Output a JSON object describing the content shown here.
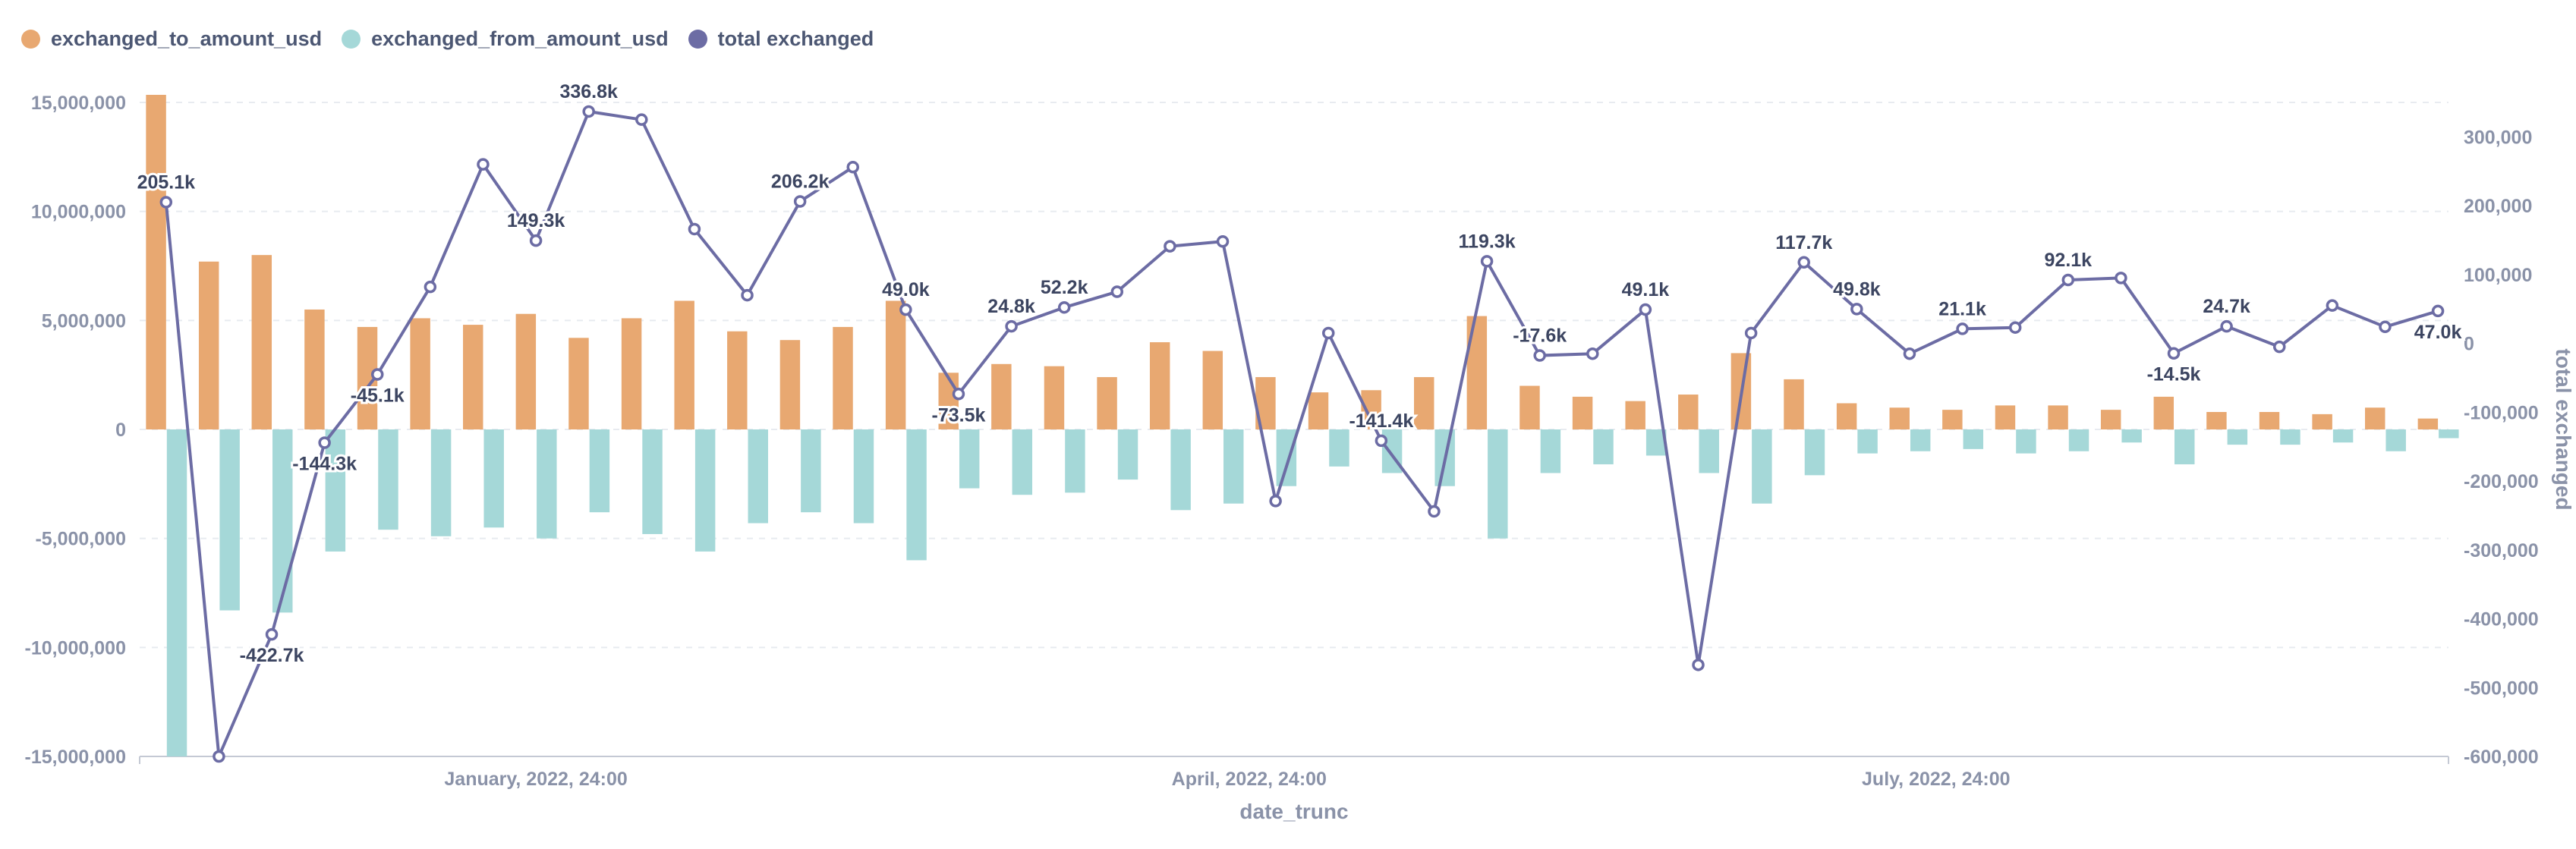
{
  "colors": {
    "to_amount": "#E8A871",
    "from_amount": "#A5D8D8",
    "total_line": "#6C6CA4",
    "axis_text": "#8A92A8",
    "label_text": "#3C4561",
    "grid": "#E8EBF0"
  },
  "legend": [
    {
      "label": "exchanged_to_amount_usd",
      "color": "#E8A871"
    },
    {
      "label": "exchanged_from_amount_usd",
      "color": "#A5D8D8"
    },
    {
      "label": "total exchanged",
      "color": "#6C6CA4"
    }
  ],
  "chart_data": {
    "type": "bar",
    "x_label": "date_trunc",
    "y2_label": "total exchanged",
    "left_axis": {
      "range": [
        -15000000,
        15000000
      ],
      "ticks": [
        15000000,
        10000000,
        5000000,
        0,
        -5000000,
        -10000000,
        -15000000
      ],
      "tick_labels": [
        "15,000,000",
        "10,000,000",
        "5,000,000",
        "0",
        "-5,000,000",
        "-10,000,000",
        "-15,000,000"
      ]
    },
    "right_axis": {
      "range": [
        -600000,
        350000
      ],
      "ticks": [
        300000,
        200000,
        100000,
        0,
        -100000,
        -200000,
        -300000,
        -400000,
        -500000,
        -600000
      ],
      "tick_labels": [
        "300,000",
        "200,000",
        "100,000",
        "0",
        "-100,000",
        "-200,000",
        "-300,000",
        "-400,000",
        "-500,000",
        "-600,000"
      ]
    },
    "x_ticks": [
      {
        "label": "January, 2022, 24:00",
        "index": 7
      },
      {
        "label": "April, 2022, 24:00",
        "index": 20.5
      },
      {
        "label": "July, 2022, 24:00",
        "index": 33.5
      }
    ],
    "grid": true,
    "legend_position": "top-left",
    "series": [
      {
        "name": "exchanged_to_amount_usd",
        "kind": "bar",
        "values": [
          15500000,
          7700000,
          8000000,
          5500000,
          4700000,
          5100000,
          4800000,
          5300000,
          4200000,
          5100000,
          5900000,
          4500000,
          4100000,
          4700000,
          5900000,
          2600000,
          3000000,
          2900000,
          2400000,
          4000000,
          3600000,
          2400000,
          1700000,
          1800000,
          2400000,
          5200000,
          2000000,
          1500000,
          1300000,
          1600000,
          3500000,
          2300000,
          1200000,
          1000000,
          900000,
          1100000,
          1100000,
          900000,
          1500000,
          800000,
          800000,
          700000,
          1000000,
          500000
        ]
      },
      {
        "name": "exchanged_from_amount_usd",
        "kind": "bar",
        "values": [
          -15300000,
          -8300000,
          -8400000,
          -5600000,
          -4600000,
          -4900000,
          -4500000,
          -5000000,
          -3800000,
          -4800000,
          -5600000,
          -4300000,
          -3800000,
          -4300000,
          -6000000,
          -2700000,
          -3000000,
          -2900000,
          -2300000,
          -3700000,
          -3400000,
          -2600000,
          -1700000,
          -2000000,
          -2600000,
          -5000000,
          -2000000,
          -1600000,
          -1200000,
          -2000000,
          -3400000,
          -2100000,
          -1100000,
          -1000000,
          -900000,
          -1100000,
          -1000000,
          -600000,
          -1600000,
          -700000,
          -700000,
          -600000,
          -1000000,
          -400000
        ]
      },
      {
        "name": "total exchanged",
        "kind": "line",
        "values": [
          205100,
          -600000,
          -422700,
          -144300,
          -45100,
          82000,
          260000,
          149300,
          336800,
          325000,
          166000,
          70000,
          206200,
          256000,
          49000,
          -73500,
          24800,
          52200,
          75000,
          141000,
          148000,
          -229000,
          15000,
          -141400,
          -244000,
          119300,
          -17600,
          -15000,
          49100,
          -467000,
          15000,
          117700,
          49800,
          -15000,
          21100,
          23000,
          92100,
          95000,
          -14500,
          24700,
          -5000,
          55000,
          24000,
          47000
        ]
      }
    ],
    "line_labels": [
      {
        "index": 0,
        "text": "205.1k",
        "pos": "above"
      },
      {
        "index": 2,
        "text": "-422.7k",
        "pos": "below"
      },
      {
        "index": 3,
        "text": "-144.3k",
        "pos": "below"
      },
      {
        "index": 4,
        "text": "-45.1k",
        "pos": "below"
      },
      {
        "index": 7,
        "text": "149.3k",
        "pos": "above"
      },
      {
        "index": 8,
        "text": "336.8k",
        "pos": "above"
      },
      {
        "index": 12,
        "text": "206.2k",
        "pos": "above"
      },
      {
        "index": 14,
        "text": "49.0k",
        "pos": "above"
      },
      {
        "index": 15,
        "text": "-73.5k",
        "pos": "below"
      },
      {
        "index": 16,
        "text": "24.8k",
        "pos": "above"
      },
      {
        "index": 17,
        "text": "52.2k",
        "pos": "above"
      },
      {
        "index": 23,
        "text": "-141.4k",
        "pos": "above"
      },
      {
        "index": 25,
        "text": "119.3k",
        "pos": "above"
      },
      {
        "index": 26,
        "text": "-17.6k",
        "pos": "above"
      },
      {
        "index": 28,
        "text": "49.1k",
        "pos": "above"
      },
      {
        "index": 31,
        "text": "117.7k",
        "pos": "above"
      },
      {
        "index": 32,
        "text": "49.8k",
        "pos": "above"
      },
      {
        "index": 34,
        "text": "21.1k",
        "pos": "above"
      },
      {
        "index": 36,
        "text": "92.1k",
        "pos": "above"
      },
      {
        "index": 38,
        "text": "-14.5k",
        "pos": "below"
      },
      {
        "index": 39,
        "text": "24.7k",
        "pos": "above"
      },
      {
        "index": 43,
        "text": "47.0k",
        "pos": "below"
      }
    ]
  }
}
